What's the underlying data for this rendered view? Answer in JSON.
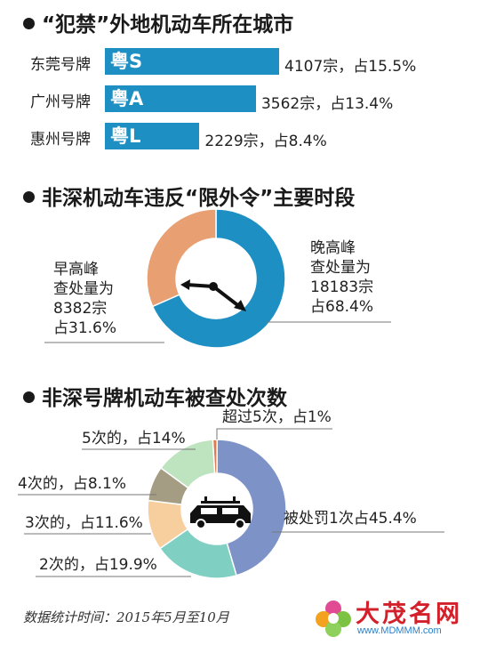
{
  "sections": {
    "cities_title": "“犯禁”外地机动车所在城市",
    "time_title": "非深机动车违反“限外令”主要时段",
    "count_title": "非深号牌机动车被查处次数"
  },
  "chart_data": [
    {
      "type": "bar",
      "orientation": "horizontal",
      "title": "“犯禁”外地机动车所在城市",
      "categories": [
        "东莞号牌",
        "广州号牌",
        "惠州号牌"
      ],
      "plates": [
        "粤S",
        "粤A",
        "粤L"
      ],
      "values": [
        4107,
        3562,
        2229
      ],
      "percents": [
        15.5,
        13.4,
        8.4
      ],
      "value_labels": [
        "4107宗，占15.5%",
        "3562宗，占13.4%",
        "2229宗，占8.4%"
      ],
      "color": "#1d8fc2"
    },
    {
      "type": "pie",
      "style": "donut",
      "title": "非深机动车违反“限外令”主要时段",
      "slices": [
        {
          "label": "晚高峰",
          "value": 18183,
          "percent": 68.4,
          "color": "#1d8fc2",
          "text": [
            "晚高峰",
            "查处量为",
            "18183宗",
            "占68.4%"
          ]
        },
        {
          "label": "早高峰",
          "value": 8382,
          "percent": 31.6,
          "color": "#e8a073",
          "text": [
            "早高峰",
            "查处量为",
            "8382宗",
            "占31.6%"
          ]
        }
      ],
      "center_icon": "clock-hands-icon"
    },
    {
      "type": "pie",
      "style": "donut",
      "title": "非深号牌机动车被查处次数",
      "slices": [
        {
          "label": "超过5次，占1%",
          "percent": 1,
          "color": "#e07a52"
        },
        {
          "label": "被处罚1次占45.4%",
          "percent": 45.4,
          "color": "#7d93c7"
        },
        {
          "label": "2次的，占19.9%",
          "percent": 19.9,
          "color": "#7fd0c2"
        },
        {
          "label": "3次的，占11.6%",
          "percent": 11.6,
          "color": "#f7cf9e"
        },
        {
          "label": "4次的，占8.1%",
          "percent": 8.1,
          "color": "#a59c84"
        },
        {
          "label": "5次的，占14%",
          "percent": 14,
          "color": "#bde3bf"
        }
      ],
      "center_icon": "car-icon"
    }
  ],
  "footer": "数据统计时间：2015年5月至10月",
  "logo": {
    "text": "大茂名网",
    "url": "www.MDMMM.com"
  }
}
